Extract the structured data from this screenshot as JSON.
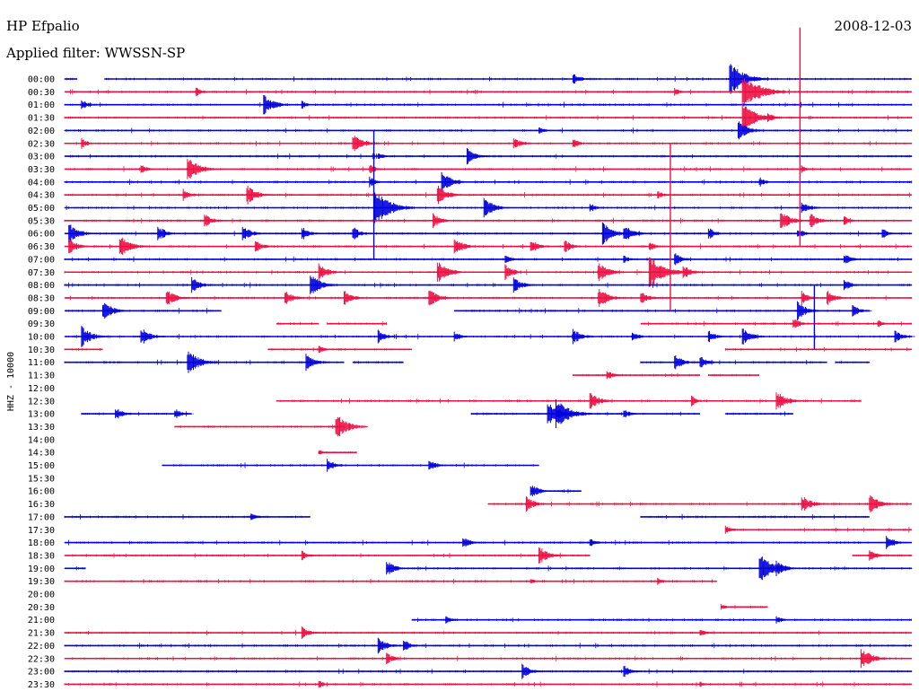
{
  "header": {
    "station": "HP Efpalio",
    "filter": "Applied filter: WWSSN-SP",
    "date": "2008-12-03"
  },
  "chart_data": {
    "type": "line",
    "title": "HP Efpalio",
    "subtitle": "Applied filter: WWSSN-SP",
    "date": "2008-12-03",
    "ylabel": "HHZ - 10000",
    "colors": {
      "a": "#0000dd",
      "b": "#ee1144"
    },
    "rows": [
      {
        "label": "00:00",
        "color": "a",
        "segments": [
          [
            0.0,
            0.015
          ],
          [
            0.047,
            1.0
          ]
        ],
        "events": [
          [
            0.6,
            1.2
          ],
          [
            0.785,
            3.4
          ]
        ]
      },
      {
        "label": "00:30",
        "color": "b",
        "segments": [
          [
            0.0,
            1.0
          ]
        ],
        "events": [
          [
            0.155,
            1.0
          ],
          [
            0.8,
            3.8
          ],
          [
            0.72,
            0.8
          ]
        ]
      },
      {
        "label": "01:00",
        "color": "a",
        "segments": [
          [
            0.0,
            1.0
          ]
        ],
        "events": [
          [
            0.02,
            1.0
          ],
          [
            0.235,
            2.0
          ],
          [
            0.28,
            0.8
          ]
        ]
      },
      {
        "label": "01:30",
        "color": "b",
        "segments": [
          [
            0.0,
            1.0
          ]
        ],
        "events": [
          [
            0.8,
            3.0
          ],
          [
            0.83,
            1.0
          ]
        ]
      },
      {
        "label": "02:00",
        "color": "a",
        "segments": [
          [
            0.0,
            1.0
          ]
        ],
        "events": [
          [
            0.795,
            2.0
          ],
          [
            0.56,
            0.7
          ]
        ]
      },
      {
        "label": "02:30",
        "color": "b",
        "segments": [
          [
            0.0,
            1.0
          ]
        ],
        "events": [
          [
            0.02,
            1.0
          ],
          [
            0.34,
            2.0
          ],
          [
            0.53,
            1.3
          ],
          [
            0.6,
            1.1
          ]
        ]
      },
      {
        "label": "03:00",
        "color": "a",
        "segments": [
          [
            0.0,
            1.0
          ]
        ],
        "events": [
          [
            0.475,
            1.6
          ],
          [
            0.37,
            0.8
          ]
        ]
      },
      {
        "label": "03:30",
        "color": "b",
        "segments": [
          [
            0.0,
            1.0
          ]
        ],
        "events": [
          [
            0.145,
            2.4
          ],
          [
            0.09,
            1.0
          ],
          [
            0.36,
            1.0
          ],
          [
            0.87,
            0.7
          ]
        ]
      },
      {
        "label": "04:00",
        "color": "a",
        "segments": [
          [
            0.0,
            1.0
          ]
        ],
        "events": [
          [
            0.445,
            2.0
          ],
          [
            0.36,
            1.0
          ],
          [
            0.82,
            1.0
          ]
        ]
      },
      {
        "label": "04:30",
        "color": "b",
        "segments": [
          [
            0.0,
            1.0
          ]
        ],
        "events": [
          [
            0.215,
            2.0
          ],
          [
            0.44,
            2.0
          ],
          [
            0.14,
            1.2
          ],
          [
            0.7,
            0.8
          ]
        ]
      },
      {
        "label": "05:00",
        "color": "a",
        "segments": [
          [
            0.0,
            1.0
          ]
        ],
        "events": [
          [
            0.365,
            3.6
          ],
          [
            0.495,
            2.0
          ],
          [
            0.62,
            1.0
          ],
          [
            0.87,
            1.4
          ]
        ]
      },
      {
        "label": "05:30",
        "color": "b",
        "segments": [
          [
            0.0,
            1.0
          ]
        ],
        "events": [
          [
            0.165,
            1.4
          ],
          [
            0.435,
            1.5
          ],
          [
            0.845,
            2.0
          ],
          [
            0.88,
            1.6
          ],
          [
            0.92,
            1.0
          ]
        ]
      },
      {
        "label": "06:00",
        "color": "a",
        "segments": [
          [
            0.0,
            1.0
          ]
        ],
        "events": [
          [
            0.005,
            2.0
          ],
          [
            0.11,
            1.6
          ],
          [
            0.21,
            1.6
          ],
          [
            0.28,
            1.4
          ],
          [
            0.34,
            1.4
          ],
          [
            0.635,
            2.2
          ],
          [
            0.66,
            1.8
          ],
          [
            0.76,
            1.2
          ],
          [
            0.865,
            1.1
          ],
          [
            0.965,
            1.0
          ]
        ]
      },
      {
        "label": "06:30",
        "color": "b",
        "segments": [
          [
            0.0,
            1.0
          ]
        ],
        "events": [
          [
            0.005,
            1.6
          ],
          [
            0.065,
            2.2
          ],
          [
            0.225,
            1.3
          ],
          [
            0.46,
            1.8
          ],
          [
            0.55,
            1.5
          ],
          [
            0.59,
            1.3
          ],
          [
            0.69,
            1.0
          ]
        ]
      },
      {
        "label": "07:00",
        "color": "a",
        "segments": [
          [
            0.0,
            1.0
          ]
        ],
        "events": [
          [
            0.52,
            1.0
          ],
          [
            0.66,
            0.8
          ],
          [
            0.72,
            1.3
          ],
          [
            0.92,
            1.2
          ]
        ]
      },
      {
        "label": "07:30",
        "color": "b",
        "segments": [
          [
            0.0,
            1.0
          ]
        ],
        "events": [
          [
            0.3,
            1.8
          ],
          [
            0.44,
            2.3
          ],
          [
            0.52,
            1.5
          ],
          [
            0.63,
            2.0
          ],
          [
            0.69,
            3.3
          ],
          [
            0.73,
            1.5
          ]
        ]
      },
      {
        "label": "08:00",
        "color": "a",
        "segments": [
          [
            0.0,
            1.0
          ]
        ],
        "events": [
          [
            0.15,
            1.6
          ],
          [
            0.29,
            2.2
          ],
          [
            0.53,
            1.6
          ],
          [
            0.92,
            1.2
          ]
        ]
      },
      {
        "label": "08:30",
        "color": "b",
        "segments": [
          [
            0.0,
            1.0
          ]
        ],
        "events": [
          [
            0.12,
            1.8
          ],
          [
            0.26,
            1.5
          ],
          [
            0.33,
            1.5
          ],
          [
            0.43,
            1.8
          ],
          [
            0.63,
            2.0
          ],
          [
            0.68,
            1.4
          ],
          [
            0.87,
            1.4
          ],
          [
            0.9,
            1.5
          ]
        ]
      },
      {
        "label": "09:00",
        "color": "a",
        "segments": [
          [
            0.0,
            0.185
          ],
          [
            0.46,
            0.95
          ]
        ],
        "events": [
          [
            0.045,
            2.0
          ],
          [
            0.865,
            1.8
          ],
          [
            0.93,
            1.2
          ]
        ]
      },
      {
        "label": "09:30",
        "color": "b",
        "segments": [
          [
            0.25,
            0.3
          ],
          [
            0.31,
            0.38
          ],
          [
            0.68,
            1.0
          ]
        ],
        "events": [
          [
            0.86,
            1.2
          ],
          [
            0.96,
            0.8
          ]
        ]
      },
      {
        "label": "10:00",
        "color": "a",
        "segments": [
          [
            0.0,
            1.0
          ]
        ],
        "events": [
          [
            0.02,
            2.0
          ],
          [
            0.09,
            1.8
          ],
          [
            0.37,
            1.3
          ],
          [
            0.46,
            1.0
          ],
          [
            0.6,
            1.6
          ],
          [
            0.67,
            1.0
          ],
          [
            0.76,
            1.2
          ],
          [
            0.8,
            1.7
          ],
          [
            0.98,
            1.3
          ]
        ]
      },
      {
        "label": "10:30",
        "color": "b",
        "segments": [
          [
            0.0,
            0.045
          ],
          [
            0.24,
            0.41
          ],
          [
            0.78,
            1.0
          ]
        ],
        "events": [
          [
            0.3,
            0.8
          ]
        ]
      },
      {
        "label": "11:00",
        "color": "a",
        "segments": [
          [
            0.0,
            0.33
          ],
          [
            0.34,
            0.4
          ],
          [
            0.68,
            0.9
          ],
          [
            0.91,
            0.95
          ]
        ],
        "events": [
          [
            0.145,
            2.5
          ],
          [
            0.285,
            1.8
          ],
          [
            0.72,
            1.6
          ],
          [
            0.75,
            1.3
          ]
        ]
      },
      {
        "label": "11:30",
        "color": "b",
        "segments": [
          [
            0.6,
            0.75
          ],
          [
            0.76,
            0.82
          ]
        ],
        "events": [
          [
            0.64,
            1.0
          ]
        ]
      },
      {
        "label": "12:00",
        "color": "a",
        "segments": [],
        "events": []
      },
      {
        "label": "12:30",
        "color": "b",
        "segments": [
          [
            0.25,
            0.94
          ]
        ],
        "events": [
          [
            0.62,
            1.8
          ],
          [
            0.74,
            1.0
          ],
          [
            0.84,
            2.0
          ]
        ]
      },
      {
        "label": "13:00",
        "color": "a",
        "segments": [
          [
            0.02,
            0.15
          ],
          [
            0.48,
            0.75
          ],
          [
            0.78,
            0.86
          ]
        ],
        "events": [
          [
            0.06,
            1.3
          ],
          [
            0.13,
            1.1
          ],
          [
            0.57,
            2.5
          ],
          [
            0.58,
            3.0
          ],
          [
            0.66,
            1.0
          ]
        ]
      },
      {
        "label": "13:30",
        "color": "b",
        "segments": [
          [
            0.13,
            0.33
          ]
        ],
        "events": [
          [
            0.32,
            2.6
          ]
        ]
      },
      {
        "label": "14:00",
        "color": "a",
        "segments": [],
        "events": []
      },
      {
        "label": "14:30",
        "color": "b",
        "segments": [
          [
            0.3,
            0.345
          ]
        ],
        "events": [
          [
            0.3,
            0.6
          ]
        ]
      },
      {
        "label": "15:00",
        "color": "a",
        "segments": [
          [
            0.115,
            0.56
          ]
        ],
        "events": [
          [
            0.31,
            1.3
          ],
          [
            0.43,
            1.3
          ]
        ]
      },
      {
        "label": "15:30",
        "color": "b",
        "segments": [],
        "events": []
      },
      {
        "label": "16:00",
        "color": "a",
        "segments": [
          [
            0.55,
            0.61
          ]
        ],
        "events": [
          [
            0.55,
            1.5
          ]
        ]
      },
      {
        "label": "16:30",
        "color": "b",
        "segments": [
          [
            0.5,
            1.0
          ]
        ],
        "events": [
          [
            0.545,
            1.5
          ],
          [
            0.87,
            1.8
          ],
          [
            0.95,
            2.0
          ]
        ]
      },
      {
        "label": "17:00",
        "color": "a",
        "segments": [
          [
            0.0,
            0.29
          ],
          [
            0.68,
            0.95
          ]
        ],
        "events": [
          [
            0.22,
            0.8
          ]
        ]
      },
      {
        "label": "17:30",
        "color": "b",
        "segments": [
          [
            0.78,
            1.0
          ]
        ],
        "events": [
          [
            0.78,
            1.0
          ]
        ]
      },
      {
        "label": "18:00",
        "color": "a",
        "segments": [
          [
            0.0,
            1.0
          ]
        ],
        "events": [
          [
            0.47,
            1.2
          ],
          [
            0.62,
            1.0
          ],
          [
            0.97,
            1.5
          ]
        ]
      },
      {
        "label": "18:30",
        "color": "b",
        "segments": [
          [
            0.0,
            0.62
          ],
          [
            0.93,
            1.0
          ]
        ],
        "events": [
          [
            0.28,
            1.0
          ],
          [
            0.56,
            1.8
          ],
          [
            0.95,
            1.2
          ]
        ]
      },
      {
        "label": "19:00",
        "color": "a",
        "segments": [
          [
            0.0,
            0.025
          ],
          [
            0.38,
            1.0
          ]
        ],
        "events": [
          [
            0.38,
            1.6
          ],
          [
            0.82,
            2.8
          ],
          [
            0.84,
            1.5
          ]
        ]
      },
      {
        "label": "19:30",
        "color": "b",
        "segments": [
          [
            0.0,
            0.77
          ]
        ],
        "events": [
          [
            0.7,
            0.8
          ],
          [
            0.55,
            0.6
          ]
        ]
      },
      {
        "label": "20:00",
        "color": "a",
        "segments": [],
        "events": []
      },
      {
        "label": "20:30",
        "color": "b",
        "segments": [
          [
            0.775,
            0.83
          ]
        ],
        "events": [
          [
            0.775,
            0.6
          ]
        ]
      },
      {
        "label": "21:00",
        "color": "a",
        "segments": [
          [
            0.41,
            1.0
          ]
        ],
        "events": [
          [
            0.45,
            0.8
          ],
          [
            0.84,
            0.8
          ]
        ]
      },
      {
        "label": "21:30",
        "color": "b",
        "segments": [
          [
            0.0,
            1.0
          ]
        ],
        "events": [
          [
            0.28,
            1.3
          ],
          [
            0.75,
            0.8
          ]
        ]
      },
      {
        "label": "22:00",
        "color": "a",
        "segments": [
          [
            0.0,
            1.0
          ]
        ],
        "events": [
          [
            0.37,
            1.6
          ],
          [
            0.4,
            1.2
          ]
        ]
      },
      {
        "label": "22:30",
        "color": "b",
        "segments": [
          [
            0.0,
            1.0
          ]
        ],
        "events": [
          [
            0.38,
            1.2
          ],
          [
            0.94,
            2.2
          ]
        ]
      },
      {
        "label": "23:00",
        "color": "a",
        "segments": [
          [
            0.0,
            1.0
          ]
        ],
        "events": [
          [
            0.54,
            1.5
          ],
          [
            0.66,
            1.2
          ]
        ]
      },
      {
        "label": "23:30",
        "color": "b",
        "segments": [
          [
            0.0,
            1.0
          ]
        ],
        "events": [
          [
            0.3,
            0.8
          ],
          [
            0.75,
            0.6
          ]
        ]
      }
    ],
    "long_spikes": [
      {
        "row": 0,
        "x": 0.868,
        "up": 0,
        "down": 13,
        "color": "b"
      },
      {
        "row": 1,
        "x": 0.868,
        "up": 5,
        "down": 0,
        "color": "b"
      },
      {
        "row": 10,
        "x": 0.365,
        "up": 6,
        "down": 4,
        "color": "a"
      },
      {
        "row": 15,
        "x": 0.715,
        "up": 10,
        "down": 3,
        "color": "b"
      },
      {
        "row": 19,
        "x": 0.885,
        "up": 3,
        "down": 2,
        "color": "a"
      }
    ]
  }
}
